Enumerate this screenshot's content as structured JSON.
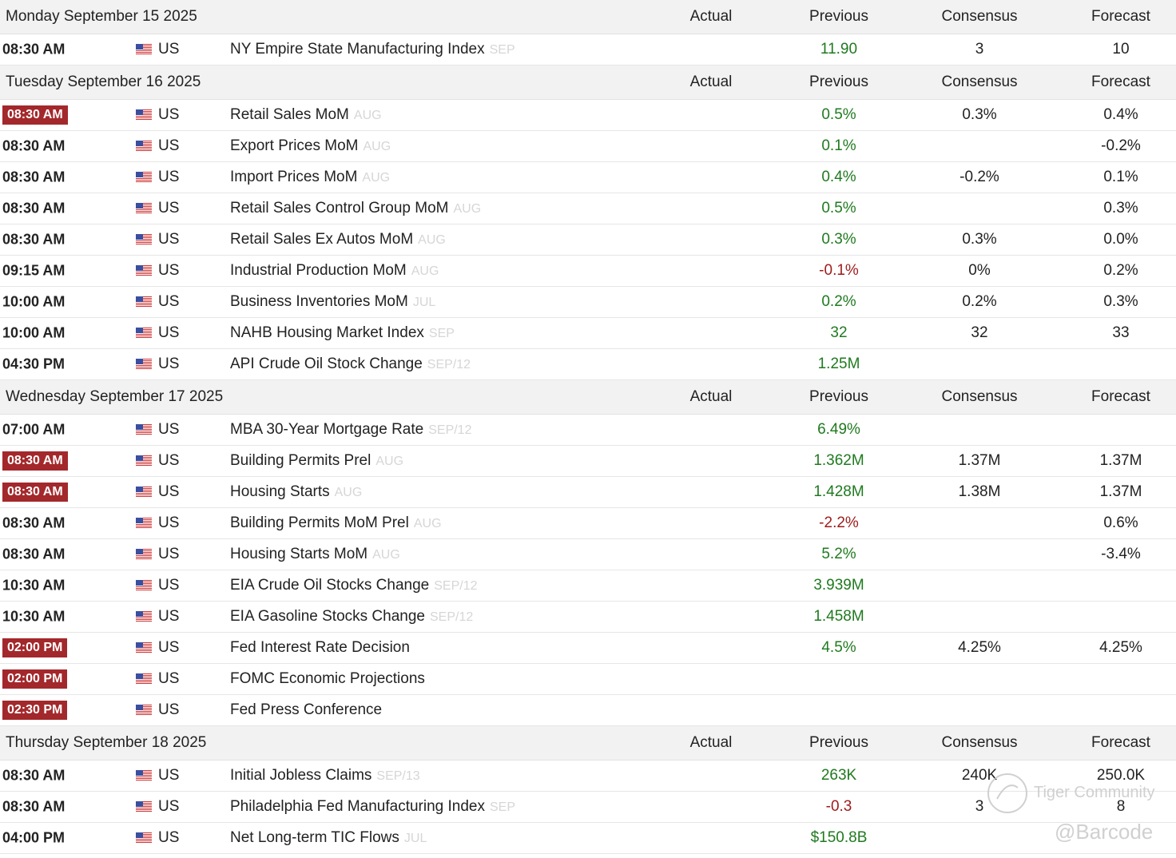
{
  "columns": [
    "Actual",
    "Previous",
    "Consensus",
    "Forecast"
  ],
  "colors": {
    "up": "#1f7a1f",
    "down": "#9e1b1b",
    "highlight": "#a3282b"
  },
  "days": [
    {
      "date": "Monday September 15 2025",
      "rows": [
        {
          "time": "08:30 AM",
          "highlight": false,
          "country": "US",
          "event": "NY Empire State Manufacturing Index",
          "period": "SEP",
          "previous": "11.90",
          "trend": "up",
          "consensus": "3",
          "forecast": "10"
        }
      ]
    },
    {
      "date": "Tuesday September 16 2025",
      "rows": [
        {
          "time": "08:30 AM",
          "highlight": true,
          "country": "US",
          "event": "Retail Sales MoM",
          "period": "AUG",
          "previous": "0.5%",
          "trend": "up",
          "consensus": "0.3%",
          "forecast": "0.4%"
        },
        {
          "time": "08:30 AM",
          "highlight": false,
          "country": "US",
          "event": "Export Prices MoM",
          "period": "AUG",
          "previous": "0.1%",
          "trend": "up",
          "consensus": null,
          "forecast": "-0.2%"
        },
        {
          "time": "08:30 AM",
          "highlight": false,
          "country": "US",
          "event": "Import Prices MoM",
          "period": "AUG",
          "previous": "0.4%",
          "trend": "up",
          "consensus": "-0.2%",
          "forecast": "0.1%"
        },
        {
          "time": "08:30 AM",
          "highlight": false,
          "country": "US",
          "event": "Retail Sales Control Group MoM",
          "period": "AUG",
          "previous": "0.5%",
          "trend": "up",
          "consensus": null,
          "forecast": "0.3%"
        },
        {
          "time": "08:30 AM",
          "highlight": false,
          "country": "US",
          "event": "Retail Sales Ex Autos MoM",
          "period": "AUG",
          "previous": "0.3%",
          "trend": "up",
          "consensus": "0.3%",
          "forecast": "0.0%"
        },
        {
          "time": "09:15 AM",
          "highlight": false,
          "country": "US",
          "event": "Industrial Production MoM",
          "period": "AUG",
          "previous": "-0.1%",
          "trend": "down",
          "consensus": "0%",
          "forecast": "0.2%"
        },
        {
          "time": "10:00 AM",
          "highlight": false,
          "country": "US",
          "event": "Business Inventories MoM",
          "period": "JUL",
          "previous": "0.2%",
          "trend": "up",
          "consensus": "0.2%",
          "forecast": "0.3%"
        },
        {
          "time": "10:00 AM",
          "highlight": false,
          "country": "US",
          "event": "NAHB Housing Market Index",
          "period": "SEP",
          "previous": "32",
          "trend": "up",
          "consensus": "32",
          "forecast": "33"
        },
        {
          "time": "04:30 PM",
          "highlight": false,
          "country": "US",
          "event": "API Crude Oil Stock Change",
          "period": "SEP/12",
          "previous": "1.25M",
          "trend": "up",
          "consensus": null,
          "forecast": null
        }
      ]
    },
    {
      "date": "Wednesday September 17 2025",
      "rows": [
        {
          "time": "07:00 AM",
          "highlight": false,
          "country": "US",
          "event": "MBA 30-Year Mortgage Rate",
          "period": "SEP/12",
          "previous": "6.49%",
          "trend": "up",
          "consensus": null,
          "forecast": null
        },
        {
          "time": "08:30 AM",
          "highlight": true,
          "country": "US",
          "event": "Building Permits Prel",
          "period": "AUG",
          "previous": "1.362M",
          "trend": "up",
          "consensus": "1.37M",
          "forecast": "1.37M"
        },
        {
          "time": "08:30 AM",
          "highlight": true,
          "country": "US",
          "event": "Housing Starts",
          "period": "AUG",
          "previous": "1.428M",
          "trend": "up",
          "consensus": "1.38M",
          "forecast": "1.37M"
        },
        {
          "time": "08:30 AM",
          "highlight": false,
          "country": "US",
          "event": "Building Permits MoM Prel",
          "period": "AUG",
          "previous": "-2.2%",
          "trend": "down",
          "consensus": null,
          "forecast": "0.6%"
        },
        {
          "time": "08:30 AM",
          "highlight": false,
          "country": "US",
          "event": "Housing Starts MoM",
          "period": "AUG",
          "previous": "5.2%",
          "trend": "up",
          "consensus": null,
          "forecast": "-3.4%"
        },
        {
          "time": "10:30 AM",
          "highlight": false,
          "country": "US",
          "event": "EIA Crude Oil Stocks Change",
          "period": "SEP/12",
          "previous": "3.939M",
          "trend": "up",
          "consensus": null,
          "forecast": null
        },
        {
          "time": "10:30 AM",
          "highlight": false,
          "country": "US",
          "event": "EIA Gasoline Stocks Change",
          "period": "SEP/12",
          "previous": "1.458M",
          "trend": "up",
          "consensus": null,
          "forecast": null
        },
        {
          "time": "02:00 PM",
          "highlight": true,
          "country": "US",
          "event": "Fed Interest Rate Decision",
          "period": null,
          "previous": "4.5%",
          "trend": "up",
          "consensus": "4.25%",
          "forecast": "4.25%"
        },
        {
          "time": "02:00 PM",
          "highlight": true,
          "country": "US",
          "event": "FOMC Economic Projections",
          "period": null,
          "previous": null,
          "trend": null,
          "consensus": null,
          "forecast": null
        },
        {
          "time": "02:30 PM",
          "highlight": true,
          "country": "US",
          "event": "Fed Press Conference",
          "period": null,
          "previous": null,
          "trend": null,
          "consensus": null,
          "forecast": null
        }
      ]
    },
    {
      "date": "Thursday September 18 2025",
      "rows": [
        {
          "time": "08:30 AM",
          "highlight": false,
          "country": "US",
          "event": "Initial Jobless Claims",
          "period": "SEP/13",
          "previous": "263K",
          "trend": "up",
          "consensus": "240K",
          "forecast": "250.0K"
        },
        {
          "time": "08:30 AM",
          "highlight": false,
          "country": "US",
          "event": "Philadelphia Fed Manufacturing Index",
          "period": "SEP",
          "previous": "-0.3",
          "trend": "down",
          "consensus": "3",
          "forecast": "8"
        },
        {
          "time": "04:00 PM",
          "highlight": false,
          "country": "US",
          "event": "Net Long-term TIC Flows",
          "period": "JUL",
          "previous": "$150.8B",
          "trend": "up",
          "consensus": null,
          "forecast": null
        }
      ]
    }
  ],
  "watermark": {
    "brand": "Tiger Community",
    "user": "@Barcode"
  }
}
